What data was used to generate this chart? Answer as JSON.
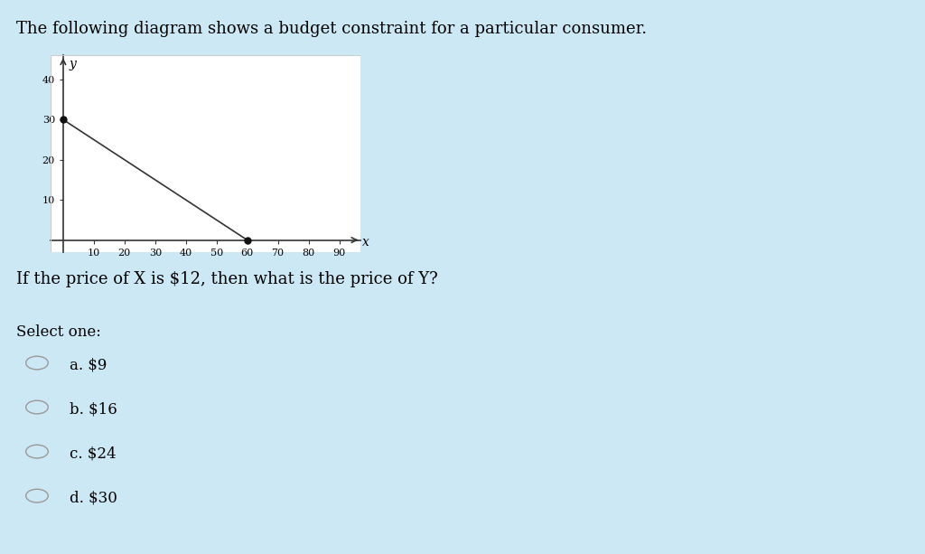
{
  "background_color": "#cde8f5",
  "page_title": "The following diagram shows a budget constraint for a particular consumer.",
  "question": "If the price of X is $12, then what is the price of Y?",
  "select_one": "Select one:",
  "options": [
    "a. $9",
    "b. $16",
    "c. $24",
    "d. $30"
  ],
  "chart_bg": "#ffffff",
  "chart_border_color": "#cccccc",
  "line_x": [
    0,
    60
  ],
  "line_y": [
    30,
    0
  ],
  "dot_points": [
    [
      0,
      30
    ],
    [
      60,
      0
    ]
  ],
  "x_ticks": [
    10,
    20,
    30,
    40,
    50,
    60,
    70,
    80,
    90
  ],
  "y_ticks": [
    10,
    20,
    30,
    40
  ],
  "x_label": "x",
  "y_label": "y",
  "x_max": 97,
  "y_max": 46,
  "x_min": -4,
  "y_min": -3,
  "line_color": "#333333",
  "dot_color": "#111111",
  "axis_color": "#333333",
  "title_fontsize": 13,
  "question_fontsize": 13,
  "select_fontsize": 12,
  "options_fontsize": 12,
  "tick_fontsize": 8,
  "label_fontsize": 10
}
